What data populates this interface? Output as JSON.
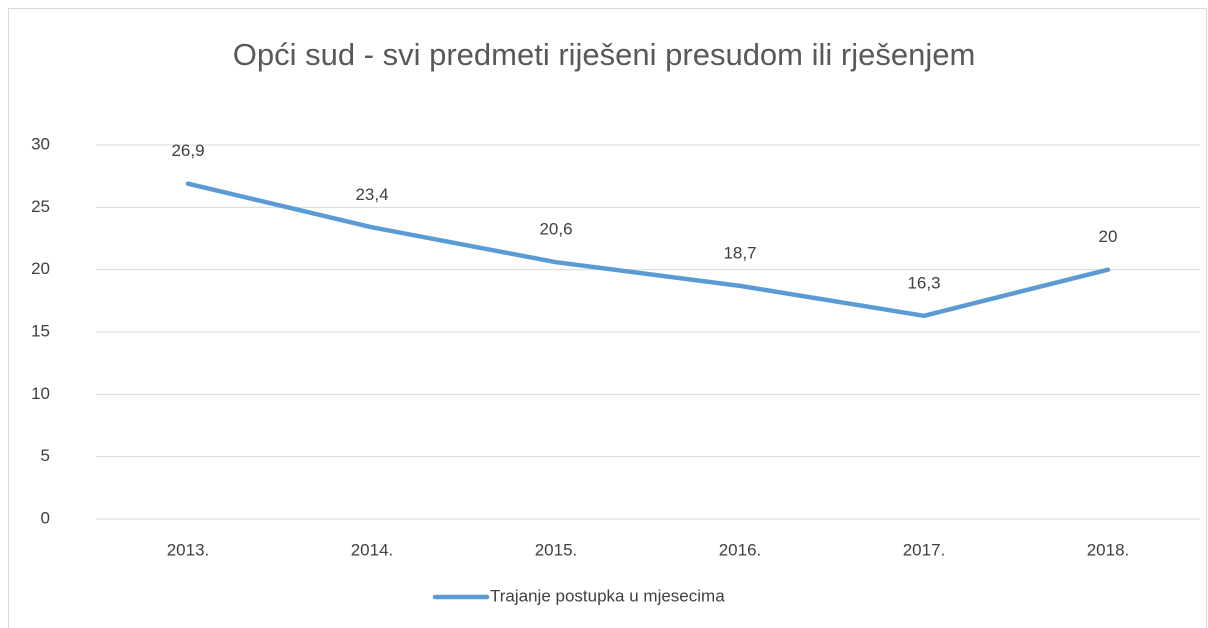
{
  "chart_data": {
    "type": "line",
    "title": "Opći sud - svi predmeti riješeni presudom ili rješenjem",
    "categories": [
      "2013.",
      "2014.",
      "2015.",
      "2016.",
      "2017.",
      "2018."
    ],
    "series": [
      {
        "name": "Trajanje postupka u mjesecima",
        "color": "#5b9bd5",
        "values": [
          26.9,
          23.4,
          20.6,
          18.7,
          16.3,
          20
        ],
        "value_labels": [
          "26,9",
          "23,4",
          "20,6",
          "18,7",
          "16,3",
          "20"
        ]
      }
    ],
    "ylim": [
      0,
      30
    ],
    "yticks": [
      0,
      5,
      10,
      15,
      20,
      25,
      30
    ],
    "grid": true,
    "legend": "bottom"
  }
}
